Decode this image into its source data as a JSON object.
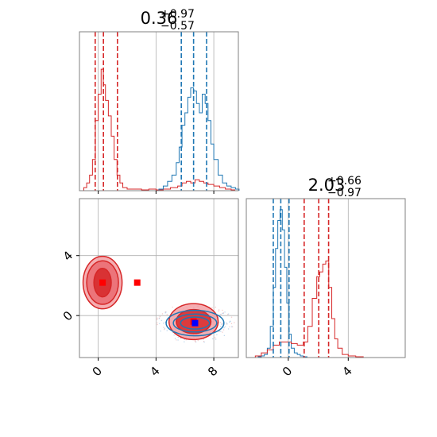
{
  "chart_data": {
    "type": "corner",
    "colors": {
      "red": "#d62728",
      "blue": "#1f77b4",
      "grid": "#b0b0b0"
    },
    "panels": [
      {
        "id": "hist_x",
        "type": "histogram",
        "title": {
          "value": "0.36",
          "plus": "+0.97",
          "minus": "−0.57"
        },
        "xlim": [
          -1.3,
          9.7
        ],
        "grid_x": [
          0,
          4,
          8
        ],
        "quantiles": {
          "red": [
            -0.21,
            0.36,
            1.33
          ],
          "blue": [
            5.75,
            6.6,
            7.5
          ]
        },
        "series": [
          {
            "name": "",
            "color": "red",
            "bins": [
              [
                -1.3,
                0.0
              ],
              [
                -1.0,
                0.02
              ],
              [
                -0.8,
                0.05
              ],
              [
                -0.6,
                0.1
              ],
              [
                -0.4,
                0.2
              ],
              [
                -0.2,
                0.45
              ],
              [
                0.0,
                0.62
              ],
              [
                0.2,
                0.78
              ],
              [
                0.35,
                0.68
              ],
              [
                0.5,
                0.58
              ],
              [
                0.7,
                0.48
              ],
              [
                0.9,
                0.35
              ],
              [
                1.1,
                0.2
              ],
              [
                1.3,
                0.1
              ],
              [
                1.5,
                0.05
              ],
              [
                1.7,
                0.02
              ],
              [
                2.0,
                0.01
              ],
              [
                2.5,
                0.01
              ],
              [
                3.0,
                0.005
              ],
              [
                3.5,
                0.01
              ],
              [
                4.0,
                0.005
              ],
              [
                4.5,
                0.01
              ],
              [
                5.0,
                0.02
              ],
              [
                5.5,
                0.03
              ],
              [
                5.8,
                0.05
              ],
              [
                6.1,
                0.06
              ],
              [
                6.4,
                0.05
              ],
              [
                6.7,
                0.07
              ],
              [
                7.0,
                0.06
              ],
              [
                7.3,
                0.05
              ],
              [
                7.6,
                0.04
              ],
              [
                8.0,
                0.03
              ],
              [
                8.4,
                0.02
              ],
              [
                8.8,
                0.01
              ],
              [
                9.2,
                0.005
              ]
            ]
          },
          {
            "name": "",
            "color": "blue",
            "bins": [
              [
                4.2,
                0.01
              ],
              [
                4.5,
                0.03
              ],
              [
                4.8,
                0.06
              ],
              [
                5.1,
                0.1
              ],
              [
                5.4,
                0.18
              ],
              [
                5.6,
                0.28
              ],
              [
                5.8,
                0.42
              ],
              [
                6.0,
                0.5
              ],
              [
                6.2,
                0.6
              ],
              [
                6.4,
                0.66
              ],
              [
                6.6,
                0.64
              ],
              [
                6.8,
                0.56
              ],
              [
                7.0,
                0.5
              ],
              [
                7.2,
                0.62
              ],
              [
                7.4,
                0.56
              ],
              [
                7.6,
                0.45
              ],
              [
                7.8,
                0.3
              ],
              [
                8.0,
                0.2
              ],
              [
                8.3,
                0.1
              ],
              [
                8.6,
                0.05
              ],
              [
                8.9,
                0.03
              ],
              [
                9.2,
                0.02
              ],
              [
                9.5,
                0.01
              ]
            ]
          }
        ]
      },
      {
        "id": "scatter_xy",
        "type": "contour",
        "xlim": [
          -1.3,
          9.7
        ],
        "ylim": [
          -2.8,
          7.8
        ],
        "xticks": [
          "0",
          "4",
          "8"
        ],
        "xtick_values": [
          0,
          4,
          8
        ],
        "yticks": [
          "0",
          "4"
        ],
        "ytick_values": [
          0,
          4
        ],
        "red_contours": [
          {
            "cx": 0.3,
            "cy": 2.2,
            "rx": 1.35,
            "ry": 1.75,
            "level": "outer"
          },
          {
            "cx": 0.3,
            "cy": 2.2,
            "rx": 1.1,
            "ry": 1.45,
            "level": "middle"
          },
          {
            "cx": 0.3,
            "cy": 2.2,
            "rx": 0.6,
            "ry": 0.95,
            "level": "inner"
          },
          {
            "cx": 6.6,
            "cy": -0.4,
            "rx": 1.7,
            "ry": 1.2,
            "level": "outer"
          },
          {
            "cx": 6.6,
            "cy": -0.4,
            "rx": 1.2,
            "ry": 0.8,
            "level": "inner"
          }
        ],
        "blue_contours": [
          {
            "cx": 6.7,
            "cy": -0.5,
            "rx": 2.0,
            "ry": 0.85
          },
          {
            "cx": 6.7,
            "cy": -0.5,
            "rx": 1.5,
            "ry": 0.6
          },
          {
            "cx": 6.7,
            "cy": -0.5,
            "rx": 1.0,
            "ry": 0.4
          }
        ],
        "markers": [
          {
            "color": "red",
            "x": 0.3,
            "y": 2.2
          },
          {
            "color": "red",
            "x": 2.7,
            "y": 2.2
          },
          {
            "color": "red",
            "x": 6.6,
            "y": -0.4
          },
          {
            "color": "blue",
            "x": 6.7,
            "y": -0.5
          }
        ]
      },
      {
        "id": "hist_y",
        "type": "histogram",
        "title": {
          "value": "2.03",
          "plus": "+0.66",
          "minus": "−0.97"
        },
        "xlim": [
          -2.8,
          7.8
        ],
        "grid_x": [
          0,
          4
        ],
        "xticks": [
          "0",
          "4"
        ],
        "xtick_values": [
          0,
          4
        ],
        "quantiles": {
          "blue": [
            -1.0,
            -0.5,
            0.05
          ],
          "red": [
            1.06,
            2.03,
            2.69
          ]
        },
        "series": [
          {
            "name": "",
            "color": "blue",
            "bins": [
              [
                -2.0,
                0.005
              ],
              [
                -1.8,
                0.01
              ],
              [
                -1.6,
                0.02
              ],
              [
                -1.4,
                0.06
              ],
              [
                -1.2,
                0.2
              ],
              [
                -1.0,
                0.45
              ],
              [
                -0.85,
                0.7
              ],
              [
                -0.7,
                0.88
              ],
              [
                -0.55,
                0.95
              ],
              [
                -0.4,
                0.82
              ],
              [
                -0.25,
                0.58
              ],
              [
                -0.1,
                0.35
              ],
              [
                0.05,
                0.15
              ],
              [
                0.2,
                0.06
              ],
              [
                0.4,
                0.03
              ],
              [
                0.6,
                0.02
              ],
              [
                0.8,
                0.01
              ],
              [
                1.0,
                0.005
              ]
            ]
          },
          {
            "name": "",
            "color": "red",
            "bins": [
              [
                -2.5,
                0.0
              ],
              [
                -2.2,
                0.01
              ],
              [
                -1.8,
                0.03
              ],
              [
                -1.4,
                0.05
              ],
              [
                -1.0,
                0.08
              ],
              [
                -0.6,
                0.1
              ],
              [
                -0.2,
                0.1
              ],
              [
                0.2,
                0.09
              ],
              [
                0.6,
                0.08
              ],
              [
                1.0,
                0.1
              ],
              [
                1.3,
                0.2
              ],
              [
                1.6,
                0.38
              ],
              [
                1.9,
                0.52
              ],
              [
                2.1,
                0.55
              ],
              [
                2.3,
                0.6
              ],
              [
                2.5,
                0.62
              ],
              [
                2.7,
                0.45
              ],
              [
                2.9,
                0.25
              ],
              [
                3.1,
                0.12
              ],
              [
                3.3,
                0.06
              ],
              [
                3.6,
                0.02
              ],
              [
                4.0,
                0.01
              ],
              [
                4.5,
                0.005
              ],
              [
                5.0,
                0.0
              ]
            ]
          }
        ]
      }
    ]
  }
}
